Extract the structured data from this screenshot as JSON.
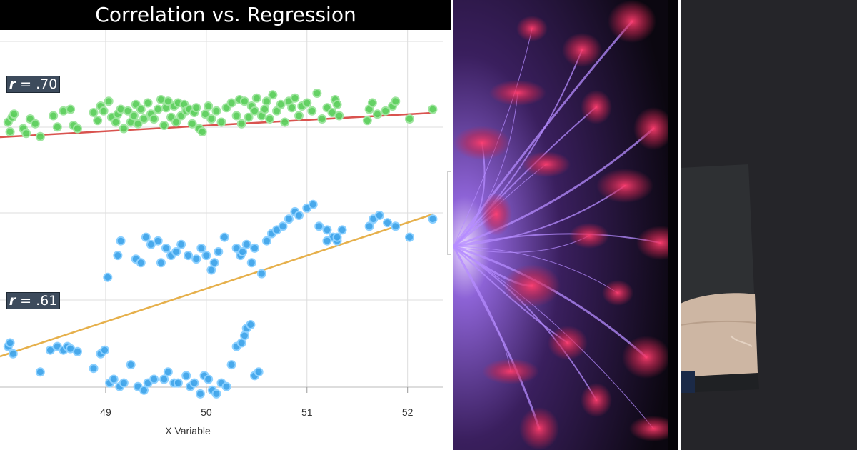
{
  "chart_data": {
    "type": "scatter",
    "title": "Correlation vs. Regression",
    "xlabel": "X Variable",
    "ylabel": "",
    "xlim": [
      47.95,
      52.35
    ],
    "x_ticks": [
      49,
      50,
      51,
      52
    ],
    "grid": true,
    "annotations": [
      {
        "r_letter": "r",
        "text": " = .70",
        "series": 0
      },
      {
        "r_letter": "r",
        "text": " = .61",
        "series": 1
      }
    ],
    "series": [
      {
        "color": "#5ccf5c",
        "edge": "#9fe59f",
        "line_color": "#d9534f",
        "regression": {
          "slope": 0.7,
          "intercept": 49.72
        },
        "x": [
          48.03,
          48.05,
          48.07,
          48.09,
          48.18,
          48.21,
          48.25,
          48.3,
          48.35,
          48.48,
          48.52,
          48.58,
          48.65,
          48.68,
          48.72,
          48.88,
          48.92,
          48.95,
          48.98,
          49.03,
          49.06,
          49.1,
          49.12,
          49.15,
          49.18,
          49.22,
          49.25,
          49.28,
          49.3,
          49.32,
          49.35,
          49.38,
          49.42,
          49.45,
          49.48,
          49.52,
          49.55,
          49.58,
          49.6,
          49.62,
          49.65,
          49.68,
          49.7,
          49.72,
          49.75,
          49.78,
          49.8,
          49.83,
          49.86,
          49.88,
          49.9,
          49.93,
          49.96,
          49.99,
          50.02,
          50.05,
          50.1,
          50.15,
          50.2,
          50.25,
          50.3,
          50.33,
          50.35,
          50.38,
          50.42,
          50.45,
          50.48,
          50.5,
          50.55,
          50.58,
          50.6,
          50.63,
          50.66,
          50.7,
          50.74,
          50.78,
          50.82,
          50.85,
          50.88,
          50.92,
          50.95,
          51.0,
          51.05,
          51.1,
          51.15,
          51.2,
          51.25,
          51.28,
          51.3,
          51.32,
          51.6,
          51.62,
          51.65,
          51.7,
          51.78,
          51.85,
          51.88,
          52.02,
          52.25
        ],
        "y": [
          0.2,
          -0.1,
          0.35,
          0.45,
          0.0,
          -0.15,
          0.3,
          0.15,
          -0.25,
          0.4,
          0.05,
          0.55,
          0.6,
          0.1,
          0.0,
          0.5,
          0.25,
          0.7,
          0.55,
          0.85,
          0.35,
          0.2,
          0.45,
          0.6,
          0.0,
          0.55,
          0.2,
          0.4,
          0.75,
          0.15,
          0.6,
          0.3,
          0.8,
          0.45,
          0.3,
          0.6,
          0.9,
          0.1,
          0.65,
          0.85,
          0.35,
          0.7,
          0.2,
          0.8,
          0.4,
          0.75,
          0.55,
          0.6,
          0.15,
          0.5,
          0.65,
          0.0,
          -0.1,
          0.45,
          0.7,
          0.3,
          0.55,
          0.2,
          0.65,
          0.8,
          0.4,
          0.9,
          0.15,
          0.85,
          0.35,
          0.7,
          0.55,
          0.95,
          0.4,
          0.6,
          0.85,
          0.3,
          1.05,
          0.55,
          0.75,
          0.2,
          0.85,
          0.65,
          0.95,
          0.4,
          0.7,
          0.8,
          0.55,
          1.1,
          0.3,
          0.65,
          0.5,
          0.9,
          0.75,
          0.4,
          0.25,
          0.6,
          0.8,
          0.45,
          0.55,
          0.7,
          0.85,
          0.3,
          0.6
        ]
      },
      {
        "color": "#3fa4ea",
        "edge": "#8cd0ff",
        "line_color": "#e6b04b",
        "regression": {
          "slope": 0.61,
          "intercept": 49.72
        },
        "x": [
          48.03,
          48.05,
          48.08,
          48.35,
          48.45,
          48.52,
          48.58,
          48.62,
          48.65,
          48.72,
          48.88,
          48.95,
          48.99,
          49.04,
          49.08,
          49.14,
          49.18,
          49.25,
          49.32,
          49.38,
          49.42,
          49.48,
          49.58,
          49.62,
          49.68,
          49.72,
          49.8,
          49.84,
          49.88,
          49.94,
          49.98,
          50.02,
          50.06,
          50.1,
          50.15,
          50.2,
          50.25,
          50.3,
          50.35,
          50.38,
          50.4,
          50.44,
          50.48,
          50.52,
          50.55,
          50.6,
          50.65,
          50.7,
          50.76,
          50.82,
          50.88,
          50.92,
          51.0,
          51.06,
          51.12,
          51.2,
          51.26,
          51.3,
          51.35,
          51.62,
          51.66,
          51.72,
          51.8,
          51.88,
          52.02,
          52.25,
          49.02,
          49.12,
          49.15,
          49.3,
          49.35,
          49.4,
          49.45,
          49.52,
          49.55,
          49.6,
          49.65,
          49.7,
          49.75,
          49.82,
          49.9,
          49.95,
          50.0,
          50.05,
          50.08,
          50.12,
          50.18,
          50.3,
          50.34,
          50.36,
          50.4,
          50.45,
          50.48,
          51.2,
          51.3
        ],
        "y": [
          -0.05,
          0.0,
          -0.15,
          -0.4,
          -0.1,
          -0.05,
          -0.1,
          -0.05,
          -0.08,
          -0.12,
          -0.35,
          -0.15,
          -0.1,
          -0.55,
          -0.5,
          -0.6,
          -0.55,
          -0.3,
          -0.6,
          -0.65,
          -0.55,
          -0.5,
          -0.5,
          -0.4,
          -0.55,
          -0.55,
          -0.45,
          -0.6,
          -0.55,
          -0.7,
          -0.45,
          -0.5,
          -0.65,
          -0.7,
          -0.55,
          -0.6,
          -0.3,
          -0.05,
          0.0,
          0.1,
          0.2,
          0.25,
          -0.45,
          -0.4,
          0.95,
          1.4,
          1.5,
          1.55,
          1.6,
          1.7,
          1.8,
          1.75,
          1.85,
          1.9,
          1.6,
          1.55,
          1.45,
          1.4,
          1.55,
          1.6,
          1.7,
          1.75,
          1.65,
          1.6,
          1.45,
          1.7,
          0.9,
          1.2,
          1.4,
          1.15,
          1.1,
          1.45,
          1.35,
          1.4,
          1.1,
          1.3,
          1.2,
          1.25,
          1.35,
          1.2,
          1.15,
          1.3,
          1.2,
          1.0,
          1.1,
          1.25,
          1.45,
          1.3,
          1.2,
          1.25,
          1.35,
          1.1,
          1.3,
          1.4,
          1.45
        ]
      }
    ]
  }
}
